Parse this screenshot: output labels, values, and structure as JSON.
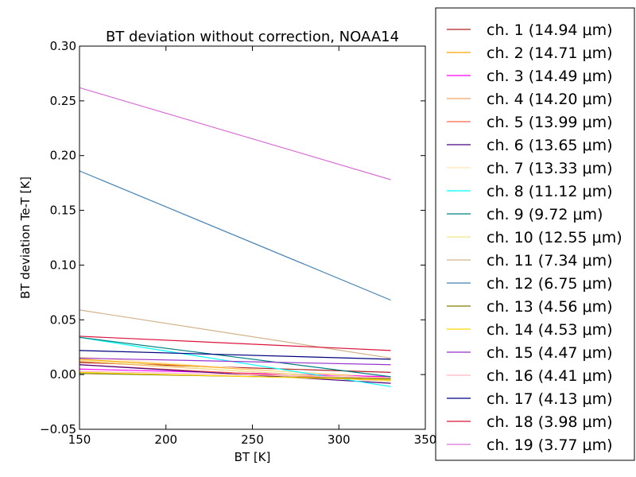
{
  "chart_data": {
    "type": "line",
    "title": "BT deviation without correction, NOAA14",
    "xlabel": "BT [K]",
    "ylabel": "BT deviation Te-T [K]",
    "xlim": [
      150,
      350
    ],
    "ylim": [
      -0.05,
      0.3
    ],
    "xticks": [
      "150",
      "200",
      "250",
      "300",
      "350"
    ],
    "yticks": [
      "−0.05",
      "0.00",
      "0.05",
      "0.10",
      "0.15",
      "0.20",
      "0.25",
      "0.30"
    ],
    "x": [
      150,
      330
    ],
    "grid": false,
    "legend_position": "outside-right",
    "series": [
      {
        "name": "ch. 1 (14.94 μm)",
        "color": "#b22222",
        "values": [
          0.011,
          0.002
        ]
      },
      {
        "name": "ch. 2 (14.71 μm)",
        "color": "#ffa500",
        "values": [
          0.014,
          -0.003
        ]
      },
      {
        "name": "ch. 3 (14.49 μm)",
        "color": "#ff00ff",
        "values": [
          0.005,
          -0.002
        ]
      },
      {
        "name": "ch. 4 (14.20 μm)",
        "color": "#f4a460",
        "values": [
          0.012,
          -0.005
        ]
      },
      {
        "name": "ch. 5 (13.99 μm)",
        "color": "#ff6347",
        "values": [
          0.009,
          -0.006
        ]
      },
      {
        "name": "ch. 6 (13.65 μm)",
        "color": "#4b0082",
        "values": [
          0.009,
          -0.008
        ]
      },
      {
        "name": "ch. 7 (13.33 μm)",
        "color": "#ffe4b5",
        "values": [
          0.016,
          -0.004
        ]
      },
      {
        "name": "ch. 8 (11.12 μm)",
        "color": "#00ffff",
        "values": [
          0.034,
          -0.011
        ]
      },
      {
        "name": "ch. 9 (9.72 μm)",
        "color": "#008080",
        "values": [
          0.034,
          -0.002
        ]
      },
      {
        "name": "ch. 10 (12.55 μm)",
        "color": "#f0e68c",
        "values": [
          0.013,
          -0.006
        ]
      },
      {
        "name": "ch. 11 (7.34 μm)",
        "color": "#d2b48c",
        "values": [
          0.059,
          0.015
        ]
      },
      {
        "name": "ch. 12 (6.75 μm)",
        "color": "#4682b4",
        "values": [
          0.186,
          0.068
        ]
      },
      {
        "name": "ch. 13 (4.56 μm)",
        "color": "#808000",
        "values": [
          0.001,
          -0.004
        ]
      },
      {
        "name": "ch. 14 (4.53 μm)",
        "color": "#ffd700",
        "values": [
          0.002,
          -0.005
        ]
      },
      {
        "name": "ch. 15 (4.47 μm)",
        "color": "#9932cc",
        "values": [
          0.015,
          0.009
        ]
      },
      {
        "name": "ch. 16 (4.41 μm)",
        "color": "#ffb6c1",
        "values": [
          0.003,
          -0.003
        ]
      },
      {
        "name": "ch. 17 (4.13 μm)",
        "color": "#000080",
        "values": [
          0.022,
          0.014
        ]
      },
      {
        "name": "ch. 18 (3.98 μm)",
        "color": "#dc143c",
        "values": [
          0.035,
          0.022
        ]
      },
      {
        "name": "ch. 19 (3.77 μm)",
        "color": "#da70d6",
        "values": [
          0.262,
          0.178
        ]
      }
    ]
  }
}
